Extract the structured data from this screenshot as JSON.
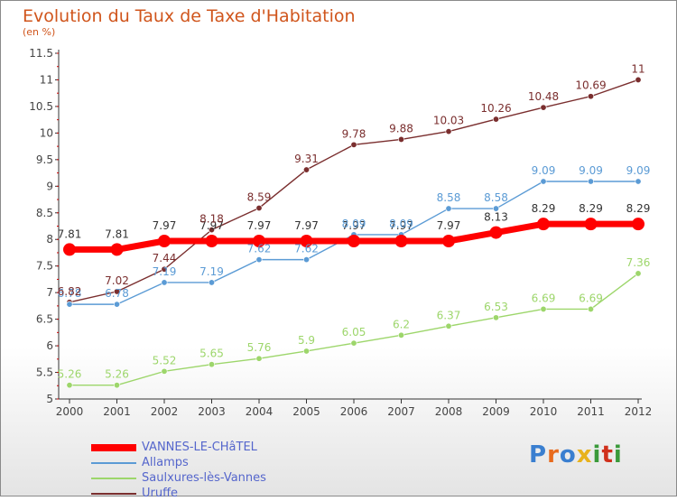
{
  "header": {
    "title": "Evolution du Taux de Taxe d'Habitation",
    "subtitle": "(en %)"
  },
  "logo": {
    "letters": [
      "P",
      "r",
      "o",
      "x",
      "i",
      "t",
      "i"
    ]
  },
  "colors": {
    "title": "#d0551c",
    "axis": "#333333",
    "tick_mark": "#cc0000",
    "label": "#444444"
  },
  "chart_data": {
    "type": "line",
    "title": "Evolution du Taux de Taxe d'Habitation",
    "subtitle": "(en %)",
    "x": [
      "2000",
      "2001",
      "2002",
      "2003",
      "2004",
      "2005",
      "2006",
      "2007",
      "2008",
      "2009",
      "2010",
      "2011",
      "2012"
    ],
    "ylim": [
      5,
      11.5
    ],
    "y_ticks": [
      "5",
      "5.5",
      "6",
      "6.5",
      "7",
      "7.5",
      "8",
      "8.5",
      "9",
      "9.5",
      "10",
      "10.5",
      "11",
      "11.5"
    ],
    "grid": false,
    "legend_position": "bottom-left",
    "series": [
      {
        "name": "VANNES-LE-CHâTEL",
        "color": "#ff0000",
        "label_color": "#333333",
        "bold": true,
        "values": [
          7.81,
          7.81,
          7.97,
          7.97,
          7.97,
          7.97,
          7.97,
          7.97,
          7.97,
          8.13,
          8.29,
          8.29,
          8.29
        ]
      },
      {
        "name": "Allamps",
        "color": "#5b9bd5",
        "label_color": "#5b9bd5",
        "values": [
          6.78,
          6.78,
          7.19,
          7.19,
          7.62,
          7.62,
          8.09,
          8.09,
          8.58,
          8.58,
          9.09,
          9.09,
          9.09
        ]
      },
      {
        "name": "Saulxures-lès-Vannes",
        "color": "#9dd66b",
        "label_color": "#9dd66b",
        "values": [
          5.26,
          5.26,
          5.52,
          5.65,
          5.76,
          5.9,
          6.05,
          6.2,
          6.37,
          6.53,
          6.69,
          6.69,
          7.36
        ]
      },
      {
        "name": "Uruffe",
        "color": "#7a2e2e",
        "label_color": "#7a2e2e",
        "values": [
          6.82,
          7.02,
          7.44,
          8.18,
          8.59,
          9.31,
          9.78,
          9.88,
          10.03,
          10.26,
          10.48,
          10.69,
          11
        ]
      }
    ],
    "data_labels": [
      [
        "7.81",
        "7.81",
        "7.97",
        "7.97",
        "7.97",
        "7.97",
        "7.97",
        "7.97",
        "7.97",
        "8.13",
        "8.29",
        "8.29",
        "8.29"
      ],
      [
        "6.78",
        "6.78",
        "7.19",
        "7.19",
        "7.62",
        "7.62",
        "8.09",
        "8.09",
        "8.58",
        "8.58",
        "9.09",
        "9.09",
        "9.09"
      ],
      [
        "5.26",
        "5.26",
        "5.52",
        "5.65",
        "5.76",
        "5.9",
        "6.05",
        "6.2",
        "6.37",
        "6.53",
        "6.69",
        "6.69",
        "7.36"
      ],
      [
        "6.82",
        "7.02",
        "7.44",
        "8.18",
        "8.59",
        "9.31",
        "9.78",
        "9.88",
        "10.03",
        "10.26",
        "10.48",
        "10.69",
        "11"
      ]
    ]
  }
}
